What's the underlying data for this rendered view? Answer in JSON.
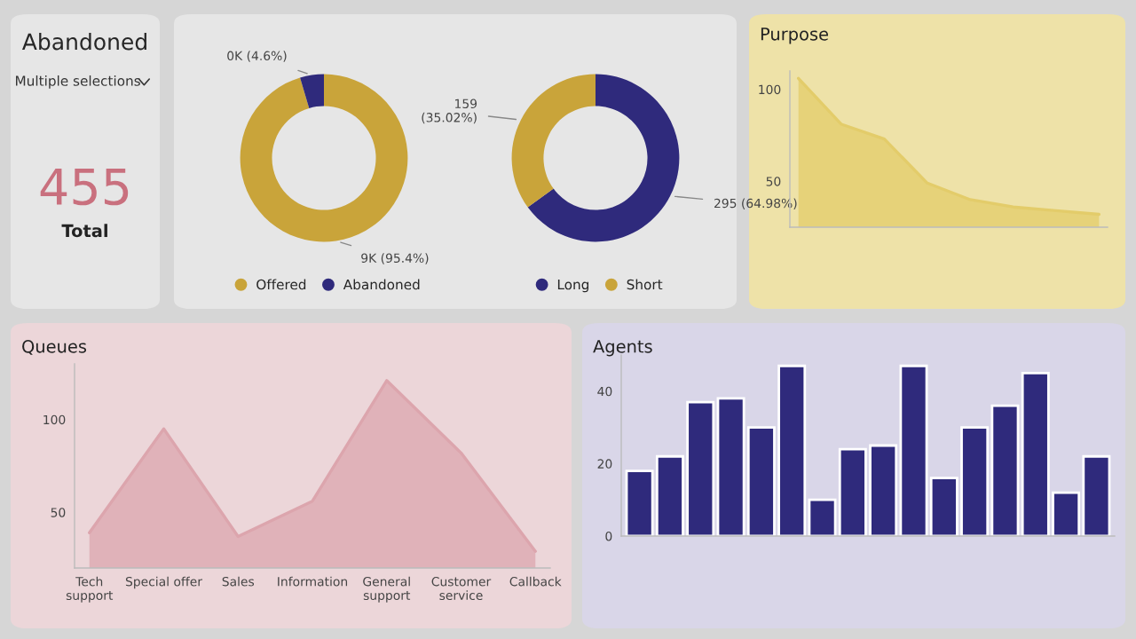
{
  "chart_data": [
    {
      "type": "other",
      "title": "Abandoned",
      "annotations": [
        "Multiple selections",
        "455",
        "Total"
      ]
    },
    {
      "type": "donut",
      "categories": [
        "Offered",
        "Abandoned"
      ],
      "values": [
        95.4,
        4.6
      ],
      "colors": [
        "#c9a43a",
        "#2f2a7c"
      ],
      "value_labels": [
        "9K (95.4%)",
        "0K (4.6%)"
      ],
      "legend": "bottom"
    },
    {
      "type": "donut",
      "categories": [
        "Long",
        "Short"
      ],
      "values": [
        295,
        159
      ],
      "colors": [
        "#2f2a7c",
        "#c9a43a"
      ],
      "value_labels": [
        "295 (64.98%)",
        "159\n(35.02%)"
      ],
      "legend": "bottom"
    },
    {
      "type": "area",
      "title": "Purpose",
      "categories": [
        null,
        null,
        null,
        null,
        null,
        null,
        null,
        null
      ],
      "values": [
        106,
        81,
        73,
        49,
        40,
        36,
        34,
        32
      ],
      "color": "#e3cc6a",
      "ylim": [
        25,
        110
      ],
      "yticks": [
        50,
        100
      ]
    },
    {
      "type": "area",
      "title": "Queues",
      "categories": [
        "Tech\nsupport",
        "Special offer",
        "Sales",
        "Information",
        "General\nsupport",
        "Customer\nservice",
        "Callback"
      ],
      "values": [
        39,
        95,
        37,
        56,
        121,
        82,
        29
      ],
      "color": "#dca5ad",
      "ylim": [
        20,
        130
      ],
      "yticks": [
        50,
        100
      ]
    },
    {
      "type": "bar",
      "title": "Agents",
      "categories": [
        null,
        null,
        null,
        null,
        null,
        null,
        null,
        null,
        null,
        null,
        null,
        null,
        null,
        null,
        null,
        null
      ],
      "values": [
        18,
        22,
        37,
        38,
        30,
        47,
        10,
        24,
        25,
        47,
        16,
        30,
        36,
        45,
        12,
        22
      ],
      "color": "#2f2a7c",
      "ylim": [
        0,
        50
      ],
      "yticks": [
        0,
        20,
        40
      ]
    }
  ]
}
